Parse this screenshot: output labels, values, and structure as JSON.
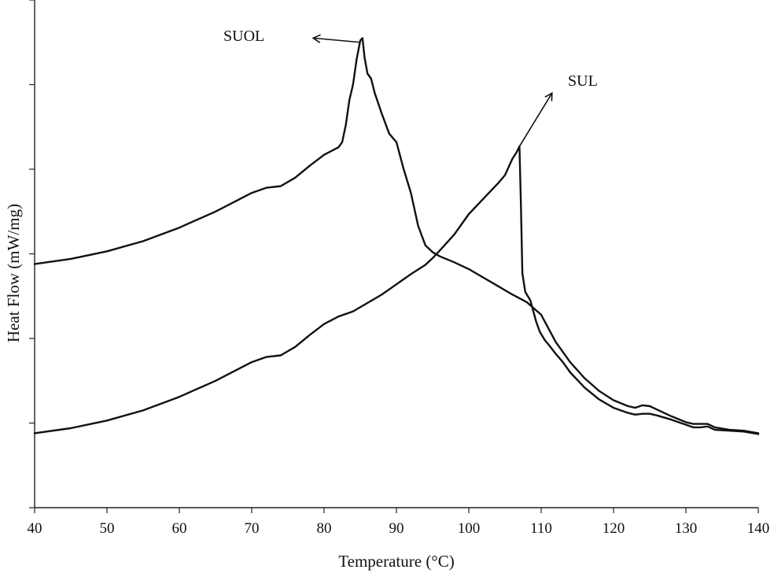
{
  "chart_data": {
    "type": "line",
    "title": "",
    "xlabel": "Temperature (°C)",
    "ylabel": "Heat Flow (mW/mg)",
    "xlim": [
      40,
      140
    ],
    "ylim": [
      0,
      6
    ],
    "xticks": [
      "40",
      "50",
      "60",
      "70",
      "80",
      "90",
      "100",
      "110",
      "120",
      "130",
      "140"
    ],
    "yticks": [
      0,
      1,
      2,
      3,
      4,
      5,
      6
    ],
    "yticks_labeled": false,
    "grid": false,
    "legend": "none",
    "series": [
      {
        "name": "SUOL",
        "x": [
          40,
          45,
          50,
          55,
          60,
          65,
          70,
          72,
          74,
          76,
          78,
          80,
          82,
          82.5,
          83,
          83.5,
          84,
          84.5,
          85,
          85.3,
          85.6,
          86,
          86.5,
          87,
          88,
          89,
          90,
          91,
          92,
          93,
          94,
          95,
          96,
          98,
          100,
          102,
          104,
          106,
          108,
          110,
          112,
          114,
          116,
          118,
          120,
          122,
          123,
          124,
          125,
          126,
          128,
          130,
          131,
          132,
          133,
          134,
          136,
          138,
          140
        ],
        "y": [
          2.88,
          2.94,
          3.03,
          3.15,
          3.31,
          3.5,
          3.72,
          3.78,
          3.8,
          3.9,
          4.04,
          4.17,
          4.26,
          4.32,
          4.52,
          4.82,
          5.0,
          5.3,
          5.52,
          5.55,
          5.32,
          5.13,
          5.07,
          4.9,
          4.65,
          4.42,
          4.32,
          4.0,
          3.72,
          3.33,
          3.1,
          3.02,
          2.97,
          2.9,
          2.82,
          2.72,
          2.62,
          2.52,
          2.43,
          2.28,
          1.96,
          1.72,
          1.53,
          1.38,
          1.27,
          1.2,
          1.18,
          1.21,
          1.2,
          1.16,
          1.08,
          1.01,
          0.99,
          0.99,
          0.99,
          0.95,
          0.92,
          0.91,
          0.88
        ]
      },
      {
        "name": "SUL",
        "x": [
          40,
          45,
          50,
          55,
          60,
          65,
          70,
          72,
          74,
          76,
          78,
          80,
          82,
          84,
          86,
          88,
          90,
          92,
          94,
          95,
          96,
          98,
          100,
          102,
          104,
          105,
          106,
          106.6,
          107,
          107.2,
          107.4,
          107.8,
          108.5,
          109.3,
          109.8,
          110.5,
          111,
          112,
          113,
          114,
          116,
          118,
          120,
          122,
          123,
          124,
          125,
          126,
          128,
          130,
          131,
          132,
          133,
          134,
          136,
          138,
          140
        ],
        "y": [
          0.88,
          0.94,
          1.03,
          1.15,
          1.31,
          1.5,
          1.72,
          1.78,
          1.8,
          1.9,
          2.04,
          2.17,
          2.26,
          2.32,
          2.42,
          2.52,
          2.64,
          2.76,
          2.87,
          2.95,
          3.04,
          3.23,
          3.47,
          3.65,
          3.83,
          3.93,
          4.12,
          4.2,
          4.27,
          3.6,
          2.77,
          2.55,
          2.45,
          2.2,
          2.08,
          1.98,
          1.93,
          1.82,
          1.72,
          1.6,
          1.42,
          1.28,
          1.18,
          1.12,
          1.1,
          1.11,
          1.11,
          1.09,
          1.04,
          0.98,
          0.95,
          0.95,
          0.96,
          0.92,
          0.91,
          0.9,
          0.87
        ]
      }
    ],
    "annotations": [
      {
        "text": "SUOL",
        "arrow_from": [
          85,
          5.5
        ],
        "arrow_to": [
          78.5,
          5.55
        ]
      },
      {
        "text": "SUL",
        "arrow_from": [
          107,
          4.27
        ],
        "arrow_to": [
          111.5,
          4.9
        ]
      }
    ]
  }
}
